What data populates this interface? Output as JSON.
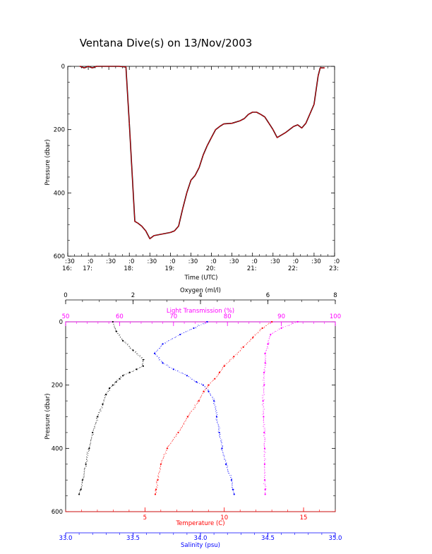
{
  "title": "Ventana Dive(s) on 13/Nov/2003",
  "colors": {
    "axis": "#000000",
    "pressure_trace": "#e8000b",
    "temperature": "#ff0000",
    "salinity": "#0000ff",
    "oxygen": "#000000",
    "light_transmission": "#ff00ff"
  },
  "chart_data": [
    {
      "type": "line",
      "name": "pressure-vs-time",
      "xlabel": "Time (UTC)",
      "ylabel": "Pressure (dbar)",
      "ylim": [
        600,
        0
      ],
      "yticks": [
        0,
        200,
        400,
        600
      ],
      "xlim": [
        "16:30",
        "23:00"
      ],
      "xticks": [
        {
          "time": "16:30",
          "minute": ":30",
          "hour": "16:"
        },
        {
          "time": "17:00",
          "minute": ":0",
          "hour": "17:"
        },
        {
          "time": "17:30",
          "minute": ":30",
          "hour": ""
        },
        {
          "time": "18:00",
          "minute": ":0",
          "hour": "18:"
        },
        {
          "time": "18:30",
          "minute": ":30",
          "hour": ""
        },
        {
          "time": "19:00",
          "minute": ":0",
          "hour": "19:"
        },
        {
          "time": "19:30",
          "minute": ":30",
          "hour": ""
        },
        {
          "time": "20:00",
          "minute": ":0",
          "hour": "20:"
        },
        {
          "time": "20:30",
          "minute": ":30",
          "hour": ""
        },
        {
          "time": "21:00",
          "minute": ":0",
          "hour": "21:"
        },
        {
          "time": "21:30",
          "minute": ":30",
          "hour": ""
        },
        {
          "time": "22:00",
          "minute": ":0",
          "hour": "22:"
        },
        {
          "time": "22:30",
          "minute": ":30",
          "hour": ""
        },
        {
          "time": "23:00",
          "minute": ":0",
          "hour": "23:"
        }
      ],
      "x": [
        "16:48",
        "16:54",
        "17:00",
        "17:06",
        "17:12",
        "17:30",
        "17:45",
        "17:55",
        "18:00",
        "18:08",
        "18:12",
        "18:18",
        "18:24",
        "18:30",
        "18:36",
        "18:48",
        "19:00",
        "19:06",
        "19:12",
        "19:18",
        "19:24",
        "19:30",
        "19:36",
        "19:42",
        "19:48",
        "19:54",
        "20:00",
        "20:06",
        "20:12",
        "20:18",
        "20:30",
        "20:42",
        "20:48",
        "20:54",
        "21:00",
        "21:06",
        "21:12",
        "21:18",
        "21:24",
        "21:30",
        "21:36",
        "21:48",
        "22:00",
        "22:06",
        "22:12",
        "22:18",
        "22:24",
        "22:30",
        "22:36",
        "22:39",
        "22:45"
      ],
      "values": [
        0,
        5,
        0,
        5,
        0,
        0,
        0,
        2,
        180,
        490,
        495,
        505,
        520,
        545,
        535,
        530,
        525,
        520,
        505,
        450,
        400,
        360,
        345,
        320,
        280,
        250,
        225,
        200,
        190,
        182,
        180,
        172,
        165,
        152,
        145,
        145,
        152,
        160,
        180,
        200,
        225,
        210,
        190,
        185,
        195,
        180,
        150,
        120,
        30,
        5,
        5
      ]
    },
    {
      "type": "scatter",
      "name": "depth-profiles",
      "ylabel": "Pressure (dbar)",
      "ylim": [
        600,
        0
      ],
      "yticks": [
        0,
        200,
        400,
        600
      ],
      "axes": {
        "oxygen": {
          "label": "Oxygen (ml/l)",
          "range": [
            0,
            8
          ],
          "ticks": [
            0,
            2,
            4,
            6,
            8
          ],
          "position": "top"
        },
        "light_transmission": {
          "label": "Light Transmission (%)",
          "range": [
            50,
            100
          ],
          "ticks": [
            50,
            60,
            70,
            80,
            90,
            100
          ],
          "position": "top"
        },
        "temperature": {
          "label": "Temperature (C)",
          "range": [
            0,
            17
          ],
          "ticks": [
            5,
            10,
            15
          ],
          "position": "bottom"
        },
        "salinity": {
          "label": "Salinity (psu)",
          "range": [
            33.0,
            35.0
          ],
          "ticks": [
            "33.0",
            "33.5",
            "34.0",
            "34.5",
            "35.0"
          ],
          "position": "bottom"
        }
      },
      "series": [
        {
          "key": "oxygen",
          "axis": "oxygen",
          "pressure": [
            0,
            30,
            60,
            90,
            120,
            140,
            150,
            160,
            170,
            180,
            190,
            200,
            210,
            230,
            260,
            300,
            350,
            400,
            450,
            500,
            530,
            545
          ],
          "values": [
            1.4,
            1.5,
            1.7,
            2.0,
            2.3,
            2.3,
            2.1,
            1.9,
            1.7,
            1.6,
            1.5,
            1.4,
            1.3,
            1.2,
            1.1,
            0.95,
            0.8,
            0.7,
            0.6,
            0.5,
            0.45,
            0.4
          ]
        },
        {
          "key": "light_transmission",
          "axis": "light_transmission",
          "pressure": [
            0,
            20,
            40,
            70,
            100,
            130,
            160,
            200,
            250,
            300,
            350,
            400,
            450,
            500,
            530,
            545
          ],
          "values": [
            93,
            90,
            88,
            87.5,
            87,
            87,
            86.8,
            86.8,
            86.6,
            86.7,
            86.8,
            86.9,
            86.9,
            86.9,
            87,
            87
          ]
        },
        {
          "key": "temperature",
          "axis": "temperature",
          "pressure": [
            0,
            20,
            50,
            80,
            110,
            140,
            160,
            180,
            200,
            220,
            250,
            300,
            350,
            400,
            450,
            500,
            530,
            545
          ],
          "values": [
            13.0,
            12.4,
            11.8,
            11.2,
            10.6,
            10.0,
            9.7,
            9.4,
            9.0,
            8.7,
            8.4,
            7.7,
            7.1,
            6.4,
            6.0,
            5.8,
            5.7,
            5.65
          ],
          "note_hidden": false
        },
        {
          "key": "salinity",
          "axis": "salinity",
          "pressure": [
            0,
            20,
            40,
            70,
            100,
            130,
            150,
            170,
            190,
            200,
            220,
            250,
            300,
            350,
            400,
            450,
            500,
            530,
            545
          ],
          "values": [
            34.05,
            33.95,
            33.85,
            33.72,
            33.66,
            33.72,
            33.8,
            33.9,
            33.97,
            34.02,
            34.06,
            34.1,
            34.12,
            34.14,
            34.16,
            34.19,
            34.23,
            34.24,
            34.25
          ]
        }
      ]
    }
  ]
}
